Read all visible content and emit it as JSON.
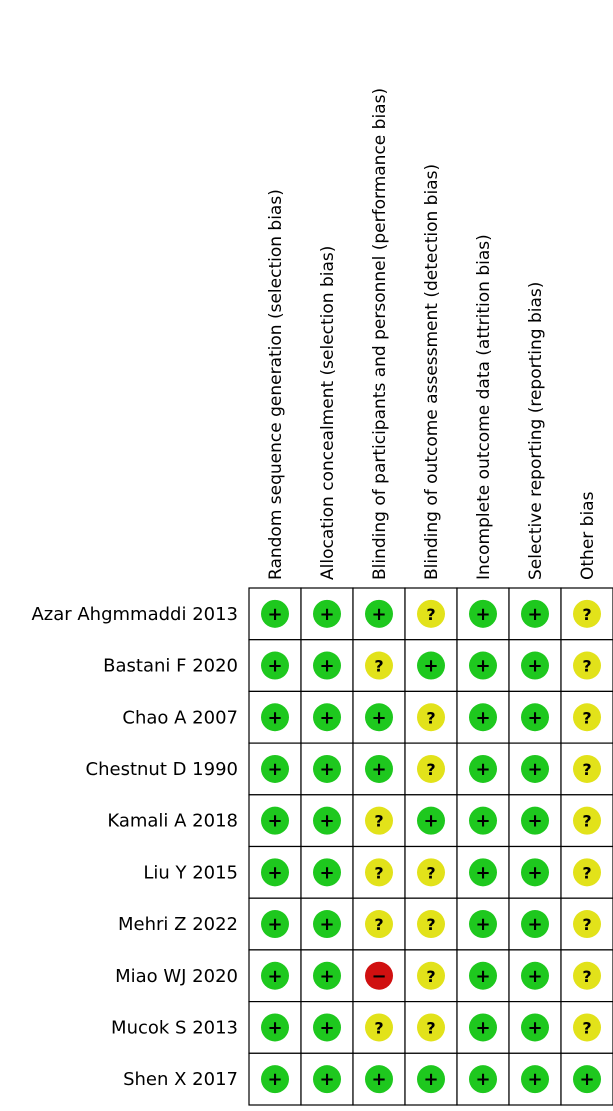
{
  "chart_data": {
    "type": "table",
    "domains": [
      "Random sequence generation (selection bias)",
      "Allocation concealment (selection bias)",
      "Blinding of participants and personnel (performance bias)",
      "Blinding of outcome assessment (detection bias)",
      "Incomplete outcome data (attrition bias)",
      "Selective reporting (reporting bias)",
      "Other bias"
    ],
    "studies": [
      "Azar Ahgmmaddi 2013",
      "Bastani F 2020",
      "Chao A 2007",
      "Chestnut D 1990",
      "Kamali A 2018",
      "Liu Y 2015",
      "Mehri Z 2022",
      "Miao WJ 2020",
      "Mucok S 2013",
      "Shen X 2017"
    ],
    "judgements": [
      [
        "low",
        "low",
        "low",
        "unclear",
        "low",
        "low",
        "unclear"
      ],
      [
        "low",
        "low",
        "unclear",
        "low",
        "low",
        "low",
        "unclear"
      ],
      [
        "low",
        "low",
        "low",
        "unclear",
        "low",
        "low",
        "unclear"
      ],
      [
        "low",
        "low",
        "low",
        "unclear",
        "low",
        "low",
        "unclear"
      ],
      [
        "low",
        "low",
        "unclear",
        "low",
        "low",
        "low",
        "unclear"
      ],
      [
        "low",
        "low",
        "unclear",
        "unclear",
        "low",
        "low",
        "unclear"
      ],
      [
        "low",
        "low",
        "unclear",
        "unclear",
        "low",
        "low",
        "unclear"
      ],
      [
        "low",
        "low",
        "high",
        "unclear",
        "low",
        "low",
        "unclear"
      ],
      [
        "low",
        "low",
        "unclear",
        "unclear",
        "low",
        "low",
        "unclear"
      ],
      [
        "low",
        "low",
        "low",
        "low",
        "low",
        "low",
        "low"
      ]
    ],
    "legend": {
      "low": {
        "symbol": "+",
        "color": "#1ec81e"
      },
      "unclear": {
        "symbol": "?",
        "color": "#e2e21a"
      },
      "high": {
        "symbol": "−",
        "color": "#d01010"
      }
    }
  }
}
